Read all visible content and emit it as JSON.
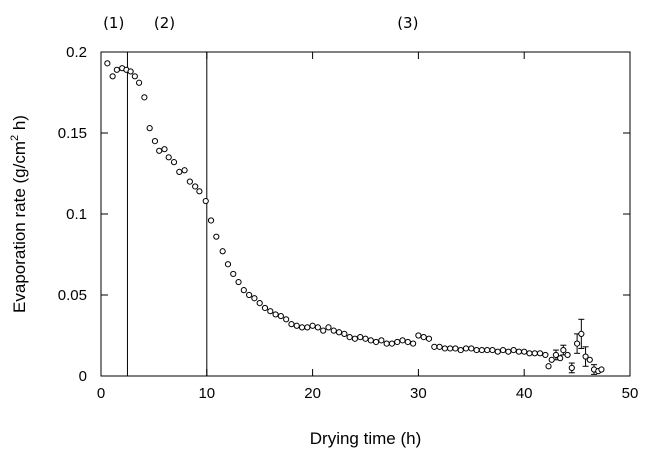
{
  "chart_data": {
    "type": "scatter",
    "xlabel": "Drying time (h)",
    "ylabel_parts": [
      "Evaporation rate (g/cm",
      "2",
      " h)"
    ],
    "xlim": [
      0,
      50
    ],
    "ylim": [
      0,
      0.2
    ],
    "xticks": [
      0,
      10,
      20,
      30,
      40,
      50
    ],
    "xtick_labels": [
      "0",
      "10",
      "20",
      "30",
      "40",
      "50"
    ],
    "yticks": [
      0,
      0.05,
      0.1,
      0.15,
      0.2
    ],
    "ytick_labels": [
      "0",
      "0.05",
      "0.1",
      "0.15",
      "0.2"
    ],
    "grid": false,
    "marker": "open-circle",
    "phase_lines": [
      2.5,
      10
    ],
    "phases": [
      {
        "label": "(1)",
        "x": 1.2
      },
      {
        "label": "(2)",
        "x": 6.0
      },
      {
        "label": "(3)",
        "x": 29.0
      }
    ],
    "series": [
      {
        "points": [
          [
            0.6,
            0.193
          ],
          [
            1.1,
            0.185
          ],
          [
            1.5,
            0.189
          ],
          [
            2.0,
            0.19
          ],
          [
            2.4,
            0.189
          ],
          [
            2.8,
            0.188
          ],
          [
            3.2,
            0.185
          ],
          [
            3.6,
            0.181
          ],
          [
            4.1,
            0.172
          ],
          [
            4.6,
            0.153
          ],
          [
            5.1,
            0.145
          ],
          [
            5.5,
            0.139
          ],
          [
            6.0,
            0.14
          ],
          [
            6.4,
            0.135
          ],
          [
            6.9,
            0.132
          ],
          [
            7.4,
            0.126
          ],
          [
            7.9,
            0.127
          ],
          [
            8.4,
            0.12
          ],
          [
            8.9,
            0.117
          ],
          [
            9.3,
            0.114
          ],
          [
            9.9,
            0.108
          ],
          [
            10.4,
            0.096
          ],
          [
            10.9,
            0.086
          ],
          [
            11.5,
            0.077
          ],
          [
            12.0,
            0.069
          ],
          [
            12.5,
            0.063
          ],
          [
            13.0,
            0.058
          ],
          [
            13.5,
            0.053
          ],
          [
            14.0,
            0.05
          ],
          [
            14.5,
            0.048
          ],
          [
            15.0,
            0.045
          ],
          [
            15.5,
            0.042
          ],
          [
            16.0,
            0.04
          ],
          [
            16.5,
            0.038
          ],
          [
            17.0,
            0.037
          ],
          [
            17.5,
            0.035
          ],
          [
            18.0,
            0.032
          ],
          [
            18.5,
            0.031
          ],
          [
            19.0,
            0.03
          ],
          [
            19.5,
            0.03
          ],
          [
            20.0,
            0.031
          ],
          [
            20.5,
            0.03
          ],
          [
            21.0,
            0.028
          ],
          [
            21.5,
            0.03
          ],
          [
            22.0,
            0.028
          ],
          [
            22.5,
            0.027
          ],
          [
            23.0,
            0.026
          ],
          [
            23.5,
            0.024
          ],
          [
            24.0,
            0.023
          ],
          [
            24.5,
            0.024
          ],
          [
            25.0,
            0.023
          ],
          [
            25.5,
            0.022
          ],
          [
            26.0,
            0.021
          ],
          [
            26.5,
            0.022
          ],
          [
            27.0,
            0.02
          ],
          [
            27.5,
            0.02
          ],
          [
            28.0,
            0.021
          ],
          [
            28.5,
            0.022
          ],
          [
            29.0,
            0.021
          ],
          [
            29.5,
            0.02
          ],
          [
            30.0,
            0.025
          ],
          [
            30.5,
            0.024
          ],
          [
            31.0,
            0.023
          ],
          [
            31.5,
            0.018
          ],
          [
            32.0,
            0.018
          ],
          [
            32.5,
            0.017
          ],
          [
            33.0,
            0.017
          ],
          [
            33.5,
            0.017
          ],
          [
            34.0,
            0.016
          ],
          [
            34.5,
            0.017
          ],
          [
            35.0,
            0.017
          ],
          [
            35.5,
            0.016
          ],
          [
            36.0,
            0.016
          ],
          [
            36.5,
            0.016
          ],
          [
            37.0,
            0.016
          ],
          [
            37.5,
            0.015
          ],
          [
            38.0,
            0.016
          ],
          [
            38.5,
            0.015
          ],
          [
            39.0,
            0.016
          ],
          [
            39.5,
            0.015
          ],
          [
            40.0,
            0.015
          ],
          [
            40.5,
            0.014
          ],
          [
            41.0,
            0.014
          ],
          [
            41.5,
            0.014
          ],
          [
            42.0,
            0.013
          ],
          [
            42.3,
            0.006
          ],
          [
            42.6,
            0.01
          ],
          [
            43.0,
            0.013
          ],
          [
            43.4,
            0.011
          ],
          [
            43.7,
            0.016
          ],
          [
            44.1,
            0.013
          ],
          [
            44.5,
            0.005
          ],
          [
            45.0,
            0.02
          ],
          [
            45.4,
            0.026
          ],
          [
            45.8,
            0.012
          ],
          [
            46.2,
            0.01
          ],
          [
            46.6,
            0.004
          ],
          [
            47.0,
            0.003
          ],
          [
            47.3,
            0.004
          ]
        ],
        "error_bars": [
          {
            "x": 43.0,
            "y": 0.013,
            "err": 0.003
          },
          {
            "x": 43.7,
            "y": 0.016,
            "err": 0.003
          },
          {
            "x": 44.5,
            "y": 0.005,
            "err": 0.003
          },
          {
            "x": 45.0,
            "y": 0.02,
            "err": 0.006
          },
          {
            "x": 45.4,
            "y": 0.026,
            "err": 0.009
          },
          {
            "x": 45.8,
            "y": 0.012,
            "err": 0.006
          },
          {
            "x": 46.6,
            "y": 0.004,
            "err": 0.003
          }
        ]
      }
    ]
  }
}
